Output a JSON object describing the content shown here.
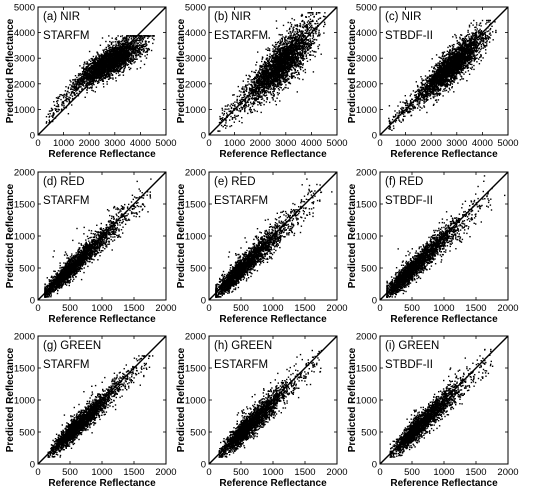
{
  "chart_data": [
    {
      "type": "scatter",
      "label": "(a) NIR",
      "method": "STARFM",
      "xlabel": "Reference Reflectance",
      "ylabel": "Predicted Reflectance",
      "xlim": [
        0,
        5000
      ],
      "ylim": [
        0,
        5000
      ],
      "xticks": [
        "0",
        "1000",
        "2000",
        "3000",
        "4000",
        "5000"
      ],
      "yticks": [
        "0",
        "1000",
        "2000",
        "3000",
        "4000",
        "5000"
      ],
      "reference_line": "1:1",
      "grid": false,
      "point_color": "#000000",
      "cluster": {
        "x": [
          200,
          4500
        ],
        "y": [
          300,
          3900
        ]
      }
    },
    {
      "type": "scatter",
      "label": "(b) NIR",
      "method": "ESTARFM",
      "xlabel": "Reference Reflectance",
      "ylabel": "Predicted Reflectance",
      "xlim": [
        0,
        5000
      ],
      "ylim": [
        0,
        5000
      ],
      "xticks": [
        "0",
        "1000",
        "2000",
        "3000",
        "4000",
        "5000"
      ],
      "yticks": [
        "0",
        "1000",
        "2000",
        "3000",
        "4000",
        "5000"
      ],
      "reference_line": "1:1",
      "grid": false,
      "point_color": "#000000",
      "cluster": {
        "x": [
          200,
          4500
        ],
        "y": [
          300,
          4800
        ]
      }
    },
    {
      "type": "scatter",
      "label": "(c) NIR",
      "method": "STBDF-II",
      "xlabel": "Reference Reflectance",
      "ylabel": "Predicted Reflectance",
      "xlim": [
        0,
        5000
      ],
      "ylim": [
        0,
        5000
      ],
      "xticks": [
        "0",
        "1000",
        "2000",
        "3000",
        "4000",
        "5000"
      ],
      "yticks": [
        "0",
        "1000",
        "2000",
        "3000",
        "4000",
        "5000"
      ],
      "reference_line": "1:1",
      "grid": false,
      "point_color": "#000000",
      "cluster": {
        "x": [
          200,
          4500
        ],
        "y": [
          300,
          4500
        ]
      }
    },
    {
      "type": "scatter",
      "label": "(d) RED",
      "method": "STARFM",
      "xlabel": "Reference Reflectance",
      "ylabel": "Predicted Reflectance",
      "xlim": [
        0,
        2000
      ],
      "ylim": [
        0,
        2000
      ],
      "xticks": [
        "0",
        "500",
        "1000",
        "1500",
        "2000"
      ],
      "yticks": [
        "0",
        "500",
        "1000",
        "1500",
        "2000"
      ],
      "reference_line": "1:1",
      "grid": false,
      "point_color": "#000000",
      "cluster": {
        "x": [
          100,
          1950
        ],
        "y": [
          100,
          1900
        ]
      }
    },
    {
      "type": "scatter",
      "label": "(e) RED",
      "method": "ESTARFM",
      "xlabel": "Reference Reflectance",
      "ylabel": "Predicted Reflectance",
      "xlim": [
        0,
        2000
      ],
      "ylim": [
        0,
        2000
      ],
      "xticks": [
        "0",
        "500",
        "1000",
        "1500",
        "2000"
      ],
      "yticks": [
        "0",
        "500",
        "1000",
        "1500",
        "2000"
      ],
      "reference_line": "1:1",
      "grid": false,
      "point_color": "#000000",
      "cluster": {
        "x": [
          100,
          1950
        ],
        "y": [
          100,
          1900
        ]
      }
    },
    {
      "type": "scatter",
      "label": "(f) RED",
      "method": "STBDF-II",
      "xlabel": "Reference Reflectance",
      "ylabel": "Predicted Reflectance",
      "xlim": [
        0,
        2000
      ],
      "ylim": [
        0,
        2000
      ],
      "xticks": [
        "0",
        "500",
        "1000",
        "1500",
        "2000"
      ],
      "yticks": [
        "0",
        "500",
        "1000",
        "1500",
        "2000"
      ],
      "reference_line": "1:1",
      "grid": false,
      "point_color": "#000000",
      "cluster": {
        "x": [
          100,
          1950
        ],
        "y": [
          100,
          1950
        ]
      }
    },
    {
      "type": "scatter",
      "label": "(g) GREEN",
      "method": "STARFM",
      "xlabel": "Reference Reflectance",
      "ylabel": "Predicted Reflectance",
      "xlim": [
        0,
        2000
      ],
      "ylim": [
        0,
        2000
      ],
      "xticks": [
        "0",
        "500",
        "1000",
        "1500",
        "2000"
      ],
      "yticks": [
        "0",
        "500",
        "1000",
        "1500",
        "2000"
      ],
      "reference_line": "1:1",
      "grid": false,
      "point_color": "#000000",
      "cluster": {
        "x": [
          150,
          1850
        ],
        "y": [
          200,
          1700
        ]
      }
    },
    {
      "type": "scatter",
      "label": "(h) GREEN",
      "method": "ESTARFM",
      "xlabel": "Reference Reflectance",
      "ylabel": "Predicted Reflectance",
      "xlim": [
        0,
        2000
      ],
      "ylim": [
        0,
        2000
      ],
      "xticks": [
        "0",
        "500",
        "1000",
        "1500",
        "2000"
      ],
      "yticks": [
        "0",
        "500",
        "1000",
        "1500",
        "2000"
      ],
      "reference_line": "1:1",
      "grid": false,
      "point_color": "#000000",
      "cluster": {
        "x": [
          150,
          1850
        ],
        "y": [
          200,
          1800
        ]
      }
    },
    {
      "type": "scatter",
      "label": "(i) GREEN",
      "method": "STBDF-II",
      "xlabel": "Reference Reflectance",
      "ylabel": "Predicted Reflectance",
      "xlim": [
        0,
        2000
      ],
      "ylim": [
        0,
        2000
      ],
      "xticks": [
        "0",
        "500",
        "1000",
        "1500",
        "2000"
      ],
      "yticks": [
        "0",
        "500",
        "1000",
        "1500",
        "2000"
      ],
      "reference_line": "1:1",
      "grid": false,
      "point_color": "#000000",
      "cluster": {
        "x": [
          150,
          1850
        ],
        "y": [
          200,
          1800
        ]
      }
    }
  ]
}
